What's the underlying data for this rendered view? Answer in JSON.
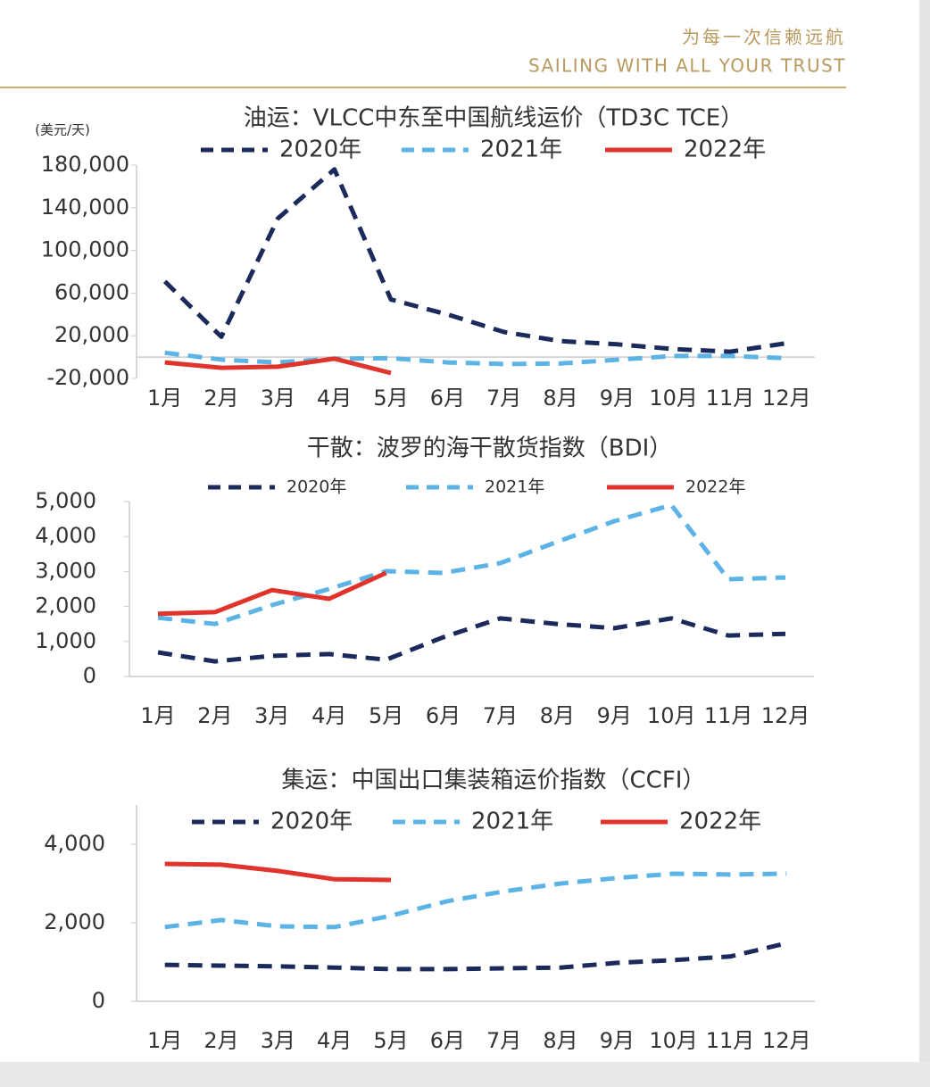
{
  "header": {
    "slogan_cn": "为每一次信赖远航",
    "slogan_en": "SAILING WITH ALL YOUR TRUST"
  },
  "chart_data": [
    {
      "type": "line",
      "title": "油运：VLCC中东至中国航线运价（TD3C TCE）",
      "y_unit": "(美元/天)",
      "categories": [
        "1月",
        "2月",
        "3月",
        "4月",
        "5月",
        "6月",
        "7月",
        "8月",
        "9月",
        "10月",
        "11月",
        "12月"
      ],
      "series": [
        {
          "name": "2020年",
          "color": "#1b2a5a",
          "dashed": true,
          "values": [
            71000,
            19000,
            130000,
            176000,
            54000,
            40000,
            23500,
            15000,
            12000,
            7500,
            5000,
            13000
          ]
        },
        {
          "name": "2021年",
          "color": "#5bb4e5",
          "dashed": true,
          "values": [
            4000,
            -2400,
            -5000,
            -1500,
            -1000,
            -5000,
            -6500,
            -6000,
            -2500,
            1000,
            1000,
            -1000
          ]
        },
        {
          "name": "2022年",
          "color": "#e0332b",
          "dashed": false,
          "values": [
            -5000,
            -10000,
            -9000,
            -1500,
            -15000,
            null,
            null,
            null,
            null,
            null,
            null,
            null
          ]
        }
      ],
      "ylim": [
        -20000,
        180000
      ],
      "yticks": [
        {
          "value": -20000,
          "label": "-20,000"
        },
        {
          "value": 20000,
          "label": "20,000"
        },
        {
          "value": 60000,
          "label": "60,000"
        },
        {
          "value": 100000,
          "label": "100,000"
        },
        {
          "value": 140000,
          "label": "140,000"
        },
        {
          "value": 180000,
          "label": "180,000"
        }
      ]
    },
    {
      "type": "line",
      "title": "干散：波罗的海干散货指数（BDI）",
      "categories": [
        "1月",
        "2月",
        "3月",
        "4月",
        "5月",
        "6月",
        "7月",
        "8月",
        "9月",
        "10月",
        "11月",
        "12月"
      ],
      "series": [
        {
          "name": "2020年",
          "color": "#1b2a5a",
          "dashed": true,
          "values": [
            690,
            430,
            590,
            640,
            480,
            1120,
            1660,
            1500,
            1380,
            1660,
            1170,
            1220
          ]
        },
        {
          "name": "2021年",
          "color": "#5bb4e5",
          "dashed": true,
          "values": [
            1680,
            1500,
            2040,
            2500,
            3010,
            2960,
            3240,
            3850,
            4440,
            4900,
            2780,
            2830
          ]
        },
        {
          "name": "2022年",
          "color": "#e0332b",
          "dashed": false,
          "values": [
            1790,
            1840,
            2470,
            2220,
            2960,
            null,
            null,
            null,
            null,
            null,
            null,
            null
          ]
        }
      ],
      "ylim": [
        0,
        5000
      ],
      "yticks": [
        0,
        {
          "value": 1000,
          "label": "1,000"
        },
        {
          "value": 2000,
          "label": "2,000"
        },
        {
          "value": 3000,
          "label": "3,000"
        },
        {
          "value": 4000,
          "label": "4,000"
        },
        {
          "value": 5000,
          "label": "5,000"
        }
      ]
    },
    {
      "type": "line",
      "title": "集运：中国出口集装箱运价指数（CCFI）",
      "categories": [
        "1月",
        "2月",
        "3月",
        "4月",
        "5月",
        "6月",
        "7月",
        "8月",
        "9月",
        "10月",
        "11月",
        "12月"
      ],
      "series": [
        {
          "name": "2020年",
          "color": "#1b2a5a",
          "dashed": true,
          "values": [
            930,
            910,
            890,
            860,
            820,
            820,
            840,
            860,
            980,
            1050,
            1140,
            1480
          ]
        },
        {
          "name": "2021年",
          "color": "#5bb4e5",
          "dashed": true,
          "values": [
            1890,
            2070,
            1910,
            1890,
            2180,
            2550,
            2800,
            3000,
            3140,
            3250,
            3230,
            3250
          ]
        },
        {
          "name": "2022年",
          "color": "#e0332b",
          "dashed": false,
          "values": [
            3500,
            3480,
            3320,
            3110,
            3090,
            null,
            null,
            null,
            null,
            null,
            null,
            null
          ]
        }
      ],
      "ylim": [
        0,
        5000
      ],
      "yticks": [
        0,
        {
          "value": 2000,
          "label": "2,000"
        },
        {
          "value": 4000,
          "label": "4,000"
        }
      ]
    }
  ]
}
